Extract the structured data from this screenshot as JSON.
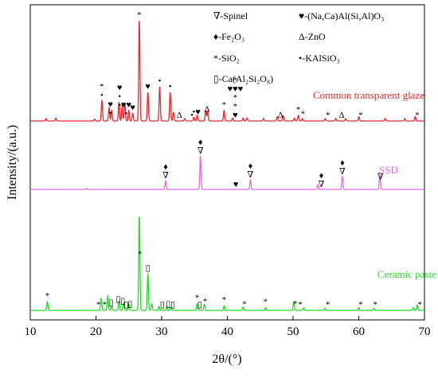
{
  "chart_data": {
    "type": "line",
    "xlabel": "2θ/(°)",
    "ylabel": "Intensity/(a.u.)",
    "xlim": [
      10,
      70
    ],
    "xticks": [
      "10",
      "20",
      "30",
      "40",
      "50",
      "60",
      "70"
    ],
    "grid": false,
    "legend": [
      {
        "symbol": "∇",
        "text": "-Spinel"
      },
      {
        "symbol": "♦",
        "text": "-Fe₂O₃"
      },
      {
        "symbol": "*",
        "text": "-SiO₂"
      },
      {
        "symbol": "▯",
        "text": "-Ca(Al₂Si₂O₈)"
      },
      {
        "symbol": "♥",
        "text": "-(Na,Ca)Al(Si,Al)O₃"
      },
      {
        "symbol": "Δ",
        "text": "-ZnO"
      },
      {
        "symbol": "•",
        "text": "-KAlSiO₃"
      }
    ],
    "series": [
      {
        "name": "Common transparent glaze",
        "color": "#e8262b",
        "baseline": 0.1,
        "peaks": [
          [
            12.4,
            0.05
          ],
          [
            13.9,
            0.06
          ],
          [
            19.8,
            0.04
          ],
          [
            20.9,
            0.42
          ],
          [
            22.0,
            0.28
          ],
          [
            22.4,
            0.22
          ],
          [
            23.5,
            0.38
          ],
          [
            24.0,
            0.32
          ],
          [
            24.4,
            0.35
          ],
          [
            25.0,
            0.22
          ],
          [
            25.6,
            0.16
          ],
          [
            26.6,
            2.1
          ],
          [
            27.9,
            0.6
          ],
          [
            29.7,
            0.72
          ],
          [
            31.3,
            0.6
          ],
          [
            31.8,
            0.18
          ],
          [
            33.5,
            0.05
          ],
          [
            34.9,
            0.08
          ],
          [
            35.4,
            0.12
          ],
          [
            36.7,
            0.22
          ],
          [
            37.0,
            0.2
          ],
          [
            39.5,
            0.22
          ],
          [
            40.8,
            0.06
          ],
          [
            42.4,
            0.06
          ],
          [
            43.0,
            0.06
          ],
          [
            45.5,
            0.05
          ],
          [
            47.6,
            0.09
          ],
          [
            48.5,
            0.11
          ],
          [
            50.2,
            0.06
          ],
          [
            50.8,
            0.12
          ],
          [
            51.4,
            0.05
          ],
          [
            54.9,
            0.05
          ],
          [
            56.5,
            0.05
          ],
          [
            58.0,
            0.05
          ],
          [
            60.0,
            0.09
          ],
          [
            64.0,
            0.05
          ],
          [
            67.0,
            0.05
          ],
          [
            68.6,
            0.09
          ]
        ],
        "markers": [
          [
            20.9,
            "* •"
          ],
          [
            22.2,
            "♥ •"
          ],
          [
            23.6,
            "♥ • •"
          ],
          [
            24.6,
            "♥♥ •"
          ],
          [
            25.6,
            "♥"
          ],
          [
            26.6,
            "*"
          ],
          [
            27.9,
            "♥"
          ],
          [
            29.7,
            "•"
          ],
          [
            31.3,
            "•"
          ],
          [
            32.7,
            "Δ"
          ],
          [
            34.6,
            "•"
          ],
          [
            35.3,
            "•♥"
          ],
          [
            36.9,
            "Δ"
          ],
          [
            39.5,
            "*"
          ],
          [
            41.2,
            "* ♥♥♥ * * ♥"
          ],
          [
            48.1,
            "Δ"
          ],
          [
            50.8,
            "*"
          ],
          [
            51.5,
            "*"
          ],
          [
            55.3,
            "*"
          ],
          [
            57.4,
            "Δ"
          ],
          [
            60.3,
            "*"
          ],
          [
            68.9,
            "*"
          ]
        ]
      },
      {
        "name": "SSD",
        "color": "#e26be2",
        "baseline": 0.08,
        "peaks": [
          [
            18.6,
            0.02
          ],
          [
            30.6,
            0.18
          ],
          [
            35.9,
            0.7
          ],
          [
            43.5,
            0.2
          ],
          [
            53.8,
            0.1
          ],
          [
            57.5,
            0.27
          ],
          [
            63.2,
            0.3
          ]
        ],
        "markers": [
          [
            30.6,
            "♦ ∇"
          ],
          [
            35.9,
            "♦ ∇"
          ],
          [
            41.3,
            "♥"
          ],
          [
            43.5,
            "♦ ∇"
          ],
          [
            54.3,
            "♦ ∇"
          ],
          [
            57.5,
            "♦ ∇"
          ],
          [
            63.3,
            "∇"
          ]
        ]
      },
      {
        "name": "Ceramic paste",
        "color": "#22dd22",
        "baseline": 0.06,
        "peaks": [
          [
            12.6,
            0.13
          ],
          [
            20.8,
            0.18
          ],
          [
            21.8,
            0.22
          ],
          [
            22.4,
            0.06
          ],
          [
            23.5,
            0.14
          ],
          [
            24.2,
            0.1
          ],
          [
            25.0,
            0.1
          ],
          [
            26.6,
            1.4
          ],
          [
            27.9,
            0.55
          ],
          [
            28.5,
            0.1
          ],
          [
            29.6,
            0.06
          ],
          [
            30.8,
            0.06
          ],
          [
            31.4,
            0.05
          ],
          [
            35.4,
            0.1
          ],
          [
            36.5,
            0.09
          ],
          [
            39.5,
            0.07
          ],
          [
            42.4,
            0.05
          ],
          [
            45.8,
            0.04
          ],
          [
            50.1,
            0.12
          ],
          [
            51.6,
            0.04
          ],
          [
            54.9,
            0.03
          ],
          [
            60.0,
            0.04
          ],
          [
            62.3,
            0.03
          ],
          [
            68.3,
            0.04
          ],
          [
            68.9,
            0.08
          ]
        ],
        "markers": [
          [
            12.6,
            "*"
          ],
          [
            20.4,
            "*"
          ],
          [
            21.3,
            "*"
          ],
          [
            22.3,
            "▯"
          ],
          [
            23.4,
            "▯"
          ],
          [
            24.1,
            "▯"
          ],
          [
            24.6,
            "▯"
          ],
          [
            25.2,
            "▯"
          ],
          [
            26.7,
            "*"
          ],
          [
            27.9,
            "▯"
          ],
          [
            30.1,
            "▯"
          ],
          [
            31.0,
            "▯"
          ],
          [
            31.7,
            "▯"
          ],
          [
            35.4,
            "*"
          ],
          [
            35.8,
            "▯"
          ],
          [
            36.6,
            "*"
          ],
          [
            39.5,
            "*"
          ],
          [
            42.6,
            "*"
          ],
          [
            45.8,
            "*"
          ],
          [
            50.3,
            "*"
          ],
          [
            51.1,
            "*"
          ],
          [
            55.3,
            "*"
          ],
          [
            60.3,
            "*"
          ],
          [
            62.5,
            "*"
          ],
          [
            69.3,
            "*"
          ]
        ]
      }
    ]
  }
}
